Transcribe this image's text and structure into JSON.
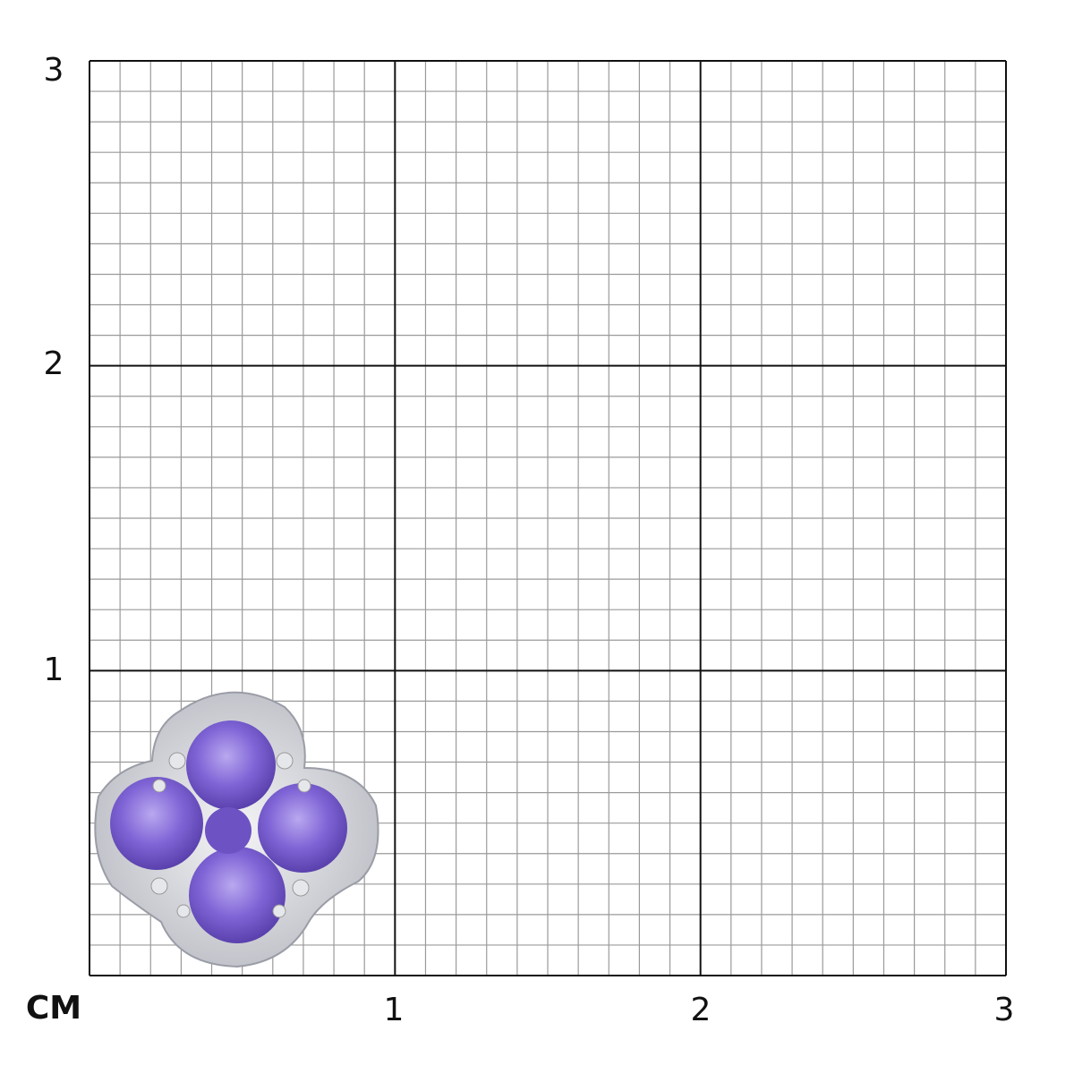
{
  "unit": "CM",
  "x_labels": [
    "1",
    "2",
    "3"
  ],
  "y_labels": [
    "1",
    "2",
    "3"
  ]
}
